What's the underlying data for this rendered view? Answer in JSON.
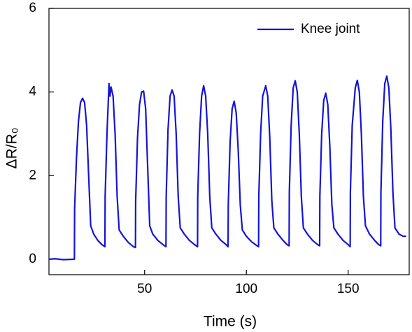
{
  "chart_data": {
    "type": "line",
    "xlabel": "Time (s)",
    "ylabel": "ΔR/R₀",
    "xlim": [
      3,
      180
    ],
    "ylim": [
      -0.37,
      6
    ],
    "xticks": [
      50,
      100,
      150
    ],
    "yticks": [
      0,
      2,
      4,
      6
    ],
    "legend": "upper right",
    "x": [
      3,
      6,
      10,
      15.5,
      15.6,
      16.5,
      17.5,
      18.5,
      19.5,
      20.5,
      21.5,
      22.5,
      23.5,
      25,
      27,
      29,
      30.5,
      30.6,
      31.5,
      32.5,
      33,
      33.5,
      34.5,
      35.5,
      36.5,
      37.5,
      39.5,
      42,
      44.5,
      45.5,
      45.6,
      46.5,
      47.5,
      48.5,
      49.5,
      50.5,
      51.5,
      52.5,
      54,
      56.5,
      59,
      60.5,
      60.6,
      61.5,
      62.5,
      63.5,
      64.5,
      65.5,
      66.5,
      67.5,
      69.5,
      72,
      74.5,
      76,
      76.1,
      77,
      78,
      79,
      80,
      81,
      82,
      83,
      85,
      87.5,
      90,
      91,
      91.1,
      92,
      93,
      94,
      95,
      96,
      97,
      98,
      100,
      102.5,
      105,
      106,
      106.1,
      107,
      108,
      109.5,
      110.5,
      111.5,
      112.5,
      113.5,
      115.5,
      118,
      120,
      121,
      121.1,
      122,
      123,
      124,
      125,
      126,
      127,
      128,
      130,
      132.5,
      135,
      136,
      136.1,
      137,
      138,
      139,
      140,
      141,
      142,
      143,
      145,
      147.5,
      150,
      151,
      151.1,
      152,
      153.5,
      154.5,
      155.5,
      156.5,
      157.5,
      158.5,
      160.5,
      163,
      165,
      166,
      166.1,
      167,
      168,
      169,
      170,
      171,
      172,
      173,
      175,
      177,
      178.5
    ],
    "series": [
      {
        "name": "Knee joint",
        "color": "#1414d8",
        "values": [
          0,
          0.01,
          -0.01,
          0,
          1.2,
          2.4,
          3.3,
          3.75,
          3.85,
          3.75,
          3.2,
          2.0,
          0.8,
          0.6,
          0.45,
          0.35,
          0.3,
          1.5,
          3.0,
          4.2,
          3.9,
          4.12,
          3.9,
          3.0,
          1.5,
          0.7,
          0.55,
          0.4,
          0.3,
          0.28,
          1.4,
          2.9,
          3.7,
          4.0,
          4.02,
          3.6,
          2.2,
          0.8,
          0.6,
          0.45,
          0.35,
          0.3,
          1.5,
          3.1,
          3.9,
          4.05,
          3.9,
          3.0,
          1.5,
          0.75,
          0.6,
          0.45,
          0.35,
          0.3,
          1.5,
          3.0,
          3.9,
          4.15,
          3.9,
          3.0,
          1.5,
          0.75,
          0.6,
          0.45,
          0.35,
          0.3,
          1.3,
          2.8,
          3.6,
          3.78,
          3.5,
          2.6,
          1.3,
          0.7,
          0.55,
          0.42,
          0.33,
          0.3,
          1.5,
          3.0,
          3.9,
          4.15,
          3.9,
          2.9,
          1.4,
          0.75,
          0.6,
          0.45,
          0.35,
          0.32,
          1.6,
          3.2,
          4.1,
          4.27,
          4.0,
          3.0,
          1.5,
          0.75,
          0.6,
          0.45,
          0.35,
          0.32,
          1.5,
          3.0,
          3.8,
          3.97,
          3.7,
          2.7,
          1.3,
          0.75,
          0.6,
          0.45,
          0.35,
          0.3,
          1.6,
          3.2,
          4.1,
          4.28,
          4.0,
          3.0,
          1.5,
          0.8,
          0.6,
          0.45,
          0.35,
          0.32,
          1.6,
          3.3,
          4.2,
          4.38,
          4.1,
          3.1,
          1.6,
          0.75,
          0.6,
          0.55,
          0.55
        ]
      }
    ]
  }
}
